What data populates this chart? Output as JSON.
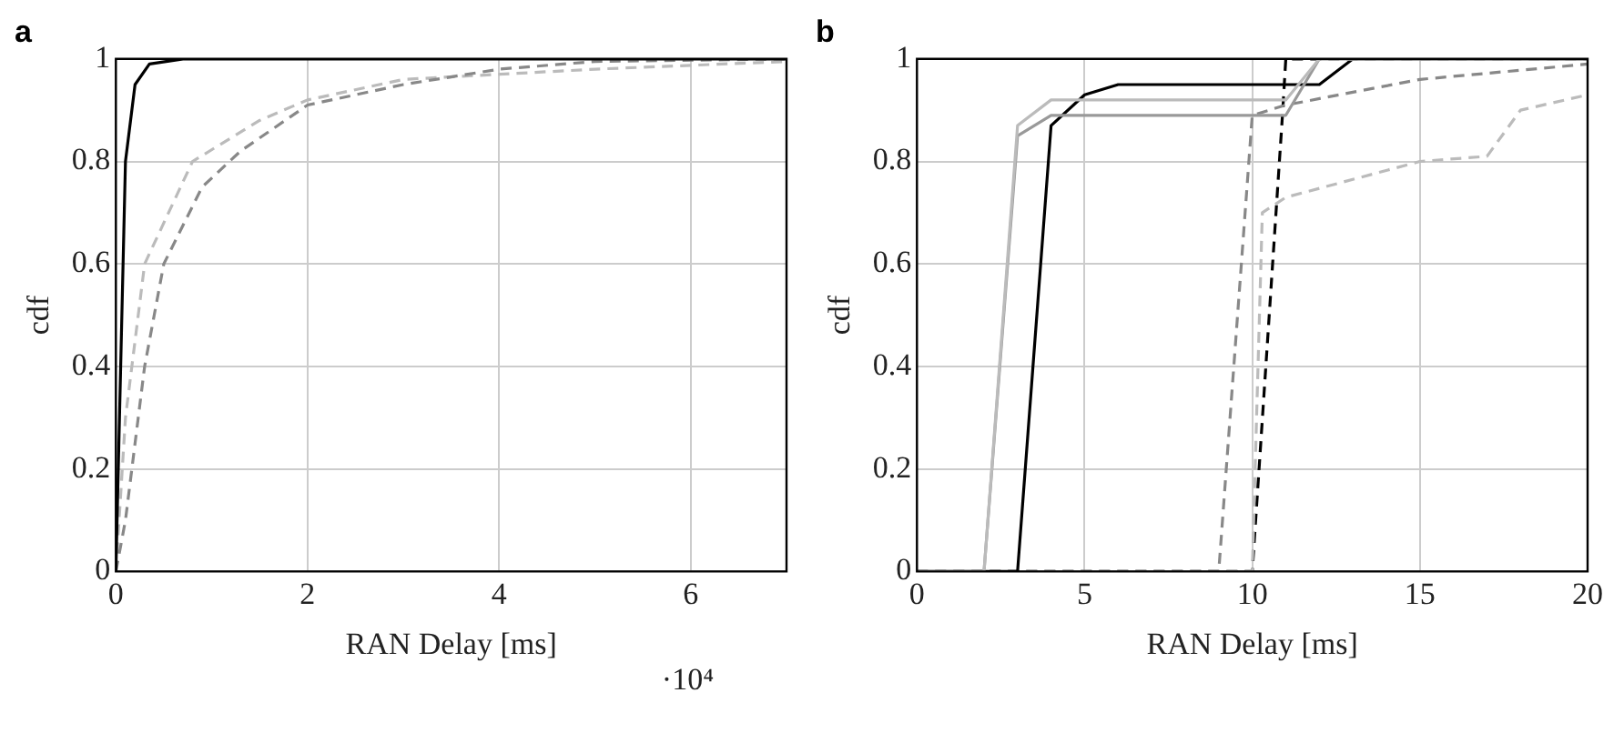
{
  "chart_data": [
    {
      "type": "line",
      "title": "a",
      "xlabel": "RAN Delay [ms]",
      "ylabel": "cdf",
      "annotations": [
        "·10⁴"
      ],
      "xlim": [
        0,
        7
      ],
      "xticks": [
        0,
        2,
        4,
        6
      ],
      "ylim": [
        0,
        1
      ],
      "yticks": [
        0,
        0.2,
        0.4,
        0.6,
        0.8,
        1
      ],
      "grid": true,
      "legend": false,
      "marker": "none",
      "series": [
        {
          "color": "#000000",
          "line_style": "solid",
          "x": [
            0,
            0.05,
            0.1,
            0.2,
            0.35,
            0.7,
            7
          ],
          "values": [
            0,
            0.4,
            0.8,
            0.95,
            0.99,
            1,
            1
          ]
        },
        {
          "color": "#888888",
          "line_style": "dashed",
          "x": [
            0,
            0.1,
            0.3,
            0.5,
            0.9,
            1.3,
            2,
            3,
            4,
            5,
            7
          ],
          "values": [
            0,
            0.1,
            0.4,
            0.6,
            0.75,
            0.82,
            0.91,
            0.95,
            0.98,
            0.995,
            1
          ]
        },
        {
          "color": "#bbbbbb",
          "line_style": "dashed",
          "x": [
            0,
            0.1,
            0.3,
            0.8,
            1.5,
            2,
            3,
            4,
            5,
            7
          ],
          "values": [
            0,
            0.3,
            0.6,
            0.8,
            0.88,
            0.92,
            0.96,
            0.97,
            0.98,
            0.995
          ]
        }
      ]
    },
    {
      "type": "line",
      "title": "b",
      "xlabel": "RAN Delay [ms]",
      "ylabel": "cdf",
      "xlim": [
        0,
        20
      ],
      "xticks": [
        0,
        5,
        10,
        15,
        20
      ],
      "ylim": [
        0,
        1
      ],
      "yticks": [
        0,
        0.2,
        0.4,
        0.6,
        0.8,
        1
      ],
      "grid": true,
      "legend": false,
      "marker": "none",
      "series": [
        {
          "color": "#bbbbbb",
          "line_style": "solid",
          "x": [
            0,
            2,
            3,
            4,
            11,
            12,
            20
          ],
          "values": [
            0,
            0,
            0.87,
            0.92,
            0.92,
            1,
            1
          ]
        },
        {
          "color": "#999999",
          "line_style": "solid",
          "x": [
            0,
            2,
            3,
            4,
            11,
            12,
            20
          ],
          "values": [
            0,
            0,
            0.85,
            0.89,
            0.89,
            1,
            1
          ]
        },
        {
          "color": "#000000",
          "line_style": "solid",
          "x": [
            0,
            3,
            4,
            5,
            6,
            12,
            13,
            20
          ],
          "values": [
            0,
            0,
            0.87,
            0.93,
            0.95,
            0.95,
            1,
            1
          ]
        },
        {
          "color": "#888888",
          "line_style": "dashed",
          "x": [
            0,
            9,
            10,
            11,
            15,
            20
          ],
          "values": [
            0,
            0,
            0.89,
            0.91,
            0.96,
            0.99
          ]
        },
        {
          "color": "#bbbbbb",
          "line_style": "dashed",
          "x": [
            0,
            10,
            10.3,
            11,
            15,
            17,
            18,
            20
          ],
          "values": [
            0,
            0,
            0.7,
            0.73,
            0.8,
            0.81,
            0.9,
            0.93
          ]
        },
        {
          "color": "#000000",
          "line_style": "dashed",
          "x": [
            0,
            10,
            10.9,
            11,
            20
          ],
          "values": [
            0,
            0,
            0.89,
            1,
            1
          ]
        }
      ]
    }
  ]
}
